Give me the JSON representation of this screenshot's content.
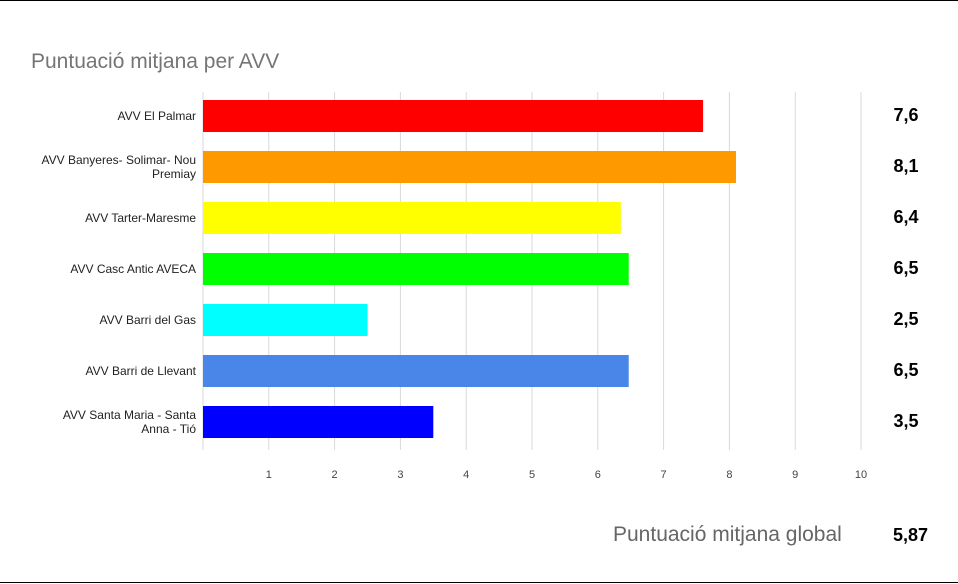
{
  "chart_data": {
    "type": "bar",
    "orientation": "horizontal",
    "title": "Puntuació mitjana per AVV",
    "categories": [
      [
        "AVV El Palmar"
      ],
      [
        "AVV Banyeres- Solimar- Nou",
        "Premiay"
      ],
      [
        "AVV Tarter-Maresme"
      ],
      [
        "AVV Casc Antic AVECA"
      ],
      [
        "AVV Barri del Gas"
      ],
      [
        "AVV Barri de Llevant"
      ],
      [
        "AVV Santa Maria - Santa",
        "Anna - Tió"
      ]
    ],
    "values": [
      7.6,
      8.1,
      6.35,
      6.47,
      2.5,
      6.47,
      3.5
    ],
    "value_labels": [
      "7,6",
      "8,1",
      "6,4",
      "6,5",
      "2,5",
      "6,5",
      "3,5"
    ],
    "colors": [
      "#ff0000",
      "#ff9900",
      "#ffff00",
      "#00ff00",
      "#00ffff",
      "#4a86e8",
      "#0000ff"
    ],
    "xlim": [
      0,
      10
    ],
    "x_ticks": [
      "1",
      "2",
      "3",
      "4",
      "5",
      "6",
      "7",
      "8",
      "9",
      "10"
    ],
    "grid": true,
    "legend": "none"
  },
  "summary": {
    "label": "Puntuació mitjana global",
    "value": "5,87"
  }
}
